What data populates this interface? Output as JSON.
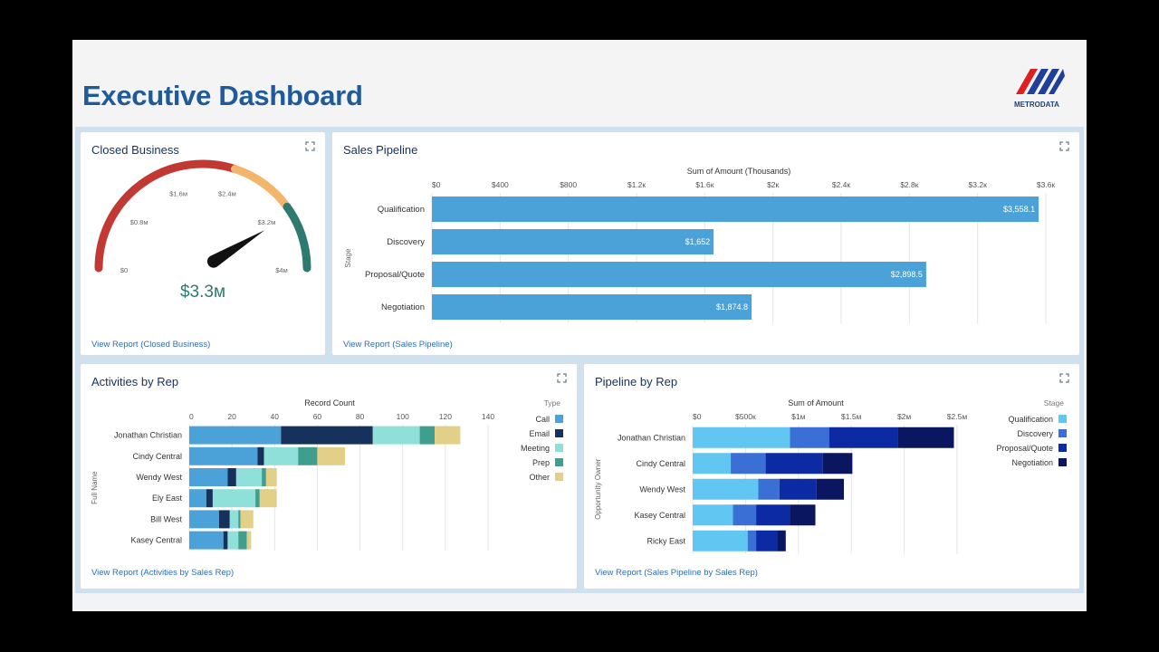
{
  "header": {
    "title": "Executive Dashboard",
    "logo_text": "METRODATA"
  },
  "colors": {
    "title": "#1f5a9a",
    "link": "#2e6db4",
    "bar": "#4aa2d8",
    "card_title": "#16325c"
  },
  "closed_business": {
    "title": "Closed Business",
    "link": "View Report (Closed Business)",
    "chart_data": {
      "type": "gauge",
      "value_label": "$3.3м",
      "value": 3.3,
      "min": 0,
      "max": 4,
      "tick_labels": [
        {
          "value": 0,
          "label": "$0"
        },
        {
          "value": 0.8,
          "label": "$0.8м"
        },
        {
          "value": 1.6,
          "label": "$1.6м"
        },
        {
          "value": 2.4,
          "label": "$2.4м"
        },
        {
          "value": 3.2,
          "label": "$3.2м"
        },
        {
          "value": 4,
          "label": "$4м"
        }
      ],
      "segments": [
        {
          "from": 0,
          "to": 2.4,
          "color": "#c23934"
        },
        {
          "from": 2.4,
          "to": 3.2,
          "color": "#f3b56c"
        },
        {
          "from": 3.2,
          "to": 4,
          "color": "#2e7a6e"
        }
      ]
    }
  },
  "sales_pipeline": {
    "title": "Sales Pipeline",
    "link": "View Report (Sales Pipeline)",
    "chart_data": {
      "type": "bar",
      "orientation": "horizontal",
      "xlabel": "Sum of Amount (Thousands)",
      "ylabel": "Stage",
      "xlim": [
        0,
        3600
      ],
      "ticks": [
        0,
        400,
        800,
        1200,
        1600,
        2000,
        2400,
        2800,
        3200,
        3600
      ],
      "tick_labels": [
        "$0",
        "$400",
        "$800",
        "$1.2к",
        "$1.6к",
        "$2к",
        "$2.4к",
        "$2.8к",
        "$3.2к",
        "$3.6к"
      ],
      "categories": [
        "Qualification",
        "Discovery",
        "Proposal/Quote",
        "Negotiation"
      ],
      "values": [
        3558.1,
        1652,
        2898.5,
        1874.8
      ],
      "value_labels": [
        "$3,558.1",
        "$1,652",
        "$2,898.5",
        "$1,874.8"
      ],
      "color": "#4aa2d8"
    }
  },
  "activities_by_rep": {
    "title": "Activities by Rep",
    "link": "View Report (Activities by Sales Rep)",
    "chart_data": {
      "type": "bar",
      "orientation": "horizontal",
      "stacked": true,
      "xlabel": "Record Count",
      "ylabel": "Full Name",
      "xlim": [
        0,
        140
      ],
      "ticks": [
        0,
        20,
        40,
        60,
        80,
        100,
        120,
        140
      ],
      "categories": [
        "Jonathan Christian",
        "Cindy Central",
        "Wendy West",
        "Ely East",
        "Bill West",
        "Kasey Central"
      ],
      "legend_title": "Type",
      "legend_position": "right",
      "series": [
        {
          "name": "Call",
          "color": "#4aa2d8",
          "values": [
            43,
            32,
            18,
            8,
            14,
            16
          ]
        },
        {
          "name": "Email",
          "color": "#16325c",
          "values": [
            43,
            3,
            4,
            3,
            5,
            2
          ]
        },
        {
          "name": "Meeting",
          "color": "#8ee0d8",
          "values": [
            22,
            16,
            12,
            20,
            4,
            5
          ]
        },
        {
          "name": "Prep",
          "color": "#3f9e8e",
          "values": [
            7,
            9,
            2,
            2,
            1,
            4
          ]
        },
        {
          "name": "Other",
          "color": "#e2cf88",
          "values": [
            12,
            13,
            5,
            8,
            6,
            2
          ]
        }
      ]
    }
  },
  "pipeline_by_rep": {
    "title": "Pipeline by Rep",
    "link": "View Report (Sales Pipeline by Sales Rep)",
    "chart_data": {
      "type": "bar",
      "orientation": "horizontal",
      "stacked": true,
      "xlabel": "Sum of Amount",
      "ylabel": "Opportunity Owner",
      "xlim": [
        0,
        2500000
      ],
      "ticks": [
        0,
        500000,
        1000000,
        1500000,
        2000000,
        2500000
      ],
      "tick_labels": [
        "$0",
        "$500к",
        "$1м",
        "$1.5м",
        "$2м",
        "$2.5м"
      ],
      "categories": [
        "Jonathan Christian",
        "Cindy Central",
        "Wendy West",
        "Kasey Central",
        "Ricky East"
      ],
      "legend_title": "Stage",
      "legend_position": "right",
      "series": [
        {
          "name": "Qualification",
          "color": "#62c6f2",
          "values": [
            920000,
            360000,
            620000,
            380000,
            520000
          ]
        },
        {
          "name": "Discovery",
          "color": "#3a6fd6",
          "values": [
            370000,
            330000,
            200000,
            220000,
            80000
          ]
        },
        {
          "name": "Proposal/Quote",
          "color": "#0c2aa3",
          "values": [
            650000,
            540000,
            350000,
            320000,
            200000
          ]
        },
        {
          "name": "Negotiation",
          "color": "#0a1660",
          "values": [
            530000,
            280000,
            260000,
            240000,
            80000
          ]
        }
      ]
    }
  }
}
